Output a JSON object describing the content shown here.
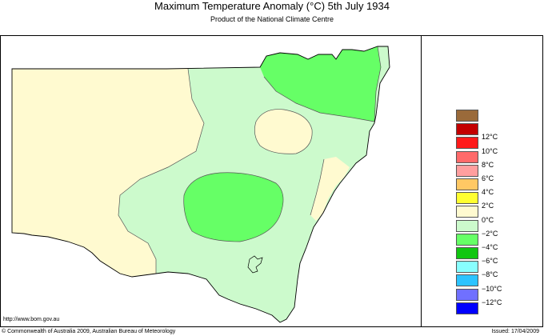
{
  "header": {
    "title": "Maximum Temperature Anomaly (°C)  5th July 1934",
    "subtitle": "Product of the National Climate Centre"
  },
  "legend": {
    "items": [
      {
        "label": "",
        "color": "#9a6a3a"
      },
      {
        "label": "12°C",
        "color": "#c30000"
      },
      {
        "label": "10°C",
        "color": "#ff1a1a"
      },
      {
        "label": "8°C",
        "color": "#ff6a6a"
      },
      {
        "label": "6°C",
        "color": "#ff9f9f"
      },
      {
        "label": "4°C",
        "color": "#ffc864"
      },
      {
        "label": "2°C",
        "color": "#ffff30"
      },
      {
        "label": "0°C",
        "color": "#fffad0"
      },
      {
        "label": "−2°C",
        "color": "#ccfacc"
      },
      {
        "label": "−4°C",
        "color": "#66ff66"
      },
      {
        "label": "−6°C",
        "color": "#11c611"
      },
      {
        "label": "−8°C",
        "color": "#88ffff"
      },
      {
        "label": "−10°C",
        "color": "#2cc3ff"
      },
      {
        "label": "−12°C",
        "color": "#7070ff"
      },
      {
        "label": "",
        "color": "#0000ff"
      }
    ]
  },
  "footer": {
    "url": "http://www.bom.gov.au",
    "copyright": "© Commonwealth of Australia 2009, Australian Bureau of Meteorology",
    "issued": "Issued: 17/04/2009"
  },
  "map": {
    "colors": {
      "warm": "#fffad0",
      "cool": "#ccfacc",
      "cold": "#66ff66"
    }
  }
}
